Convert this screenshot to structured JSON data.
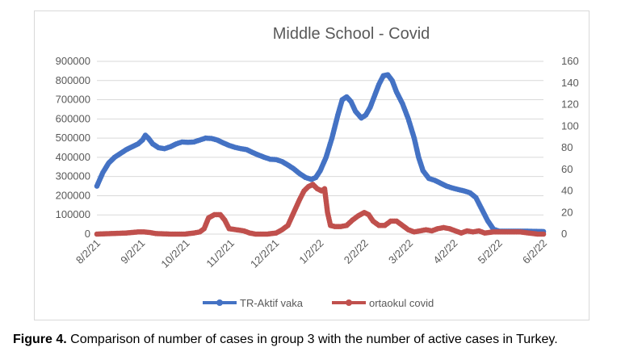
{
  "chart_data": {
    "type": "line",
    "title": "Middle School - Covid",
    "y_left": {
      "ticks": [
        "0",
        "100000",
        "200000",
        "300000",
        "400000",
        "500000",
        "600000",
        "700000",
        "800000",
        "900000"
      ],
      "lim": [
        0,
        900000
      ]
    },
    "y_right": {
      "ticks": [
        "0",
        "20",
        "40",
        "60",
        "80",
        "100",
        "120",
        "140",
        "160"
      ],
      "lim": [
        0,
        160
      ]
    },
    "x_tick_labels": [
      "8/2/21",
      "9/2/21",
      "10/2/21",
      "11/2/21",
      "12/2/21",
      "1/2/22",
      "2/2/22",
      "3/2/22",
      "4/2/22",
      "5/2/22",
      "6/2/22"
    ],
    "x_range_days": [
      0,
      304
    ],
    "legend_position": "bottom",
    "series": [
      {
        "name": "TR-Aktif vaka",
        "axis": "left",
        "color": "#4472c4",
        "points": [
          [
            0,
            250000
          ],
          [
            4,
            320000
          ],
          [
            8,
            370000
          ],
          [
            12,
            400000
          ],
          [
            16,
            420000
          ],
          [
            20,
            440000
          ],
          [
            24,
            455000
          ],
          [
            28,
            470000
          ],
          [
            31,
            490000
          ],
          [
            33,
            515000
          ],
          [
            35,
            500000
          ],
          [
            38,
            470000
          ],
          [
            42,
            450000
          ],
          [
            46,
            445000
          ],
          [
            50,
            455000
          ],
          [
            54,
            470000
          ],
          [
            58,
            480000
          ],
          [
            62,
            478000
          ],
          [
            66,
            480000
          ],
          [
            70,
            490000
          ],
          [
            74,
            500000
          ],
          [
            78,
            498000
          ],
          [
            82,
            490000
          ],
          [
            86,
            475000
          ],
          [
            90,
            462000
          ],
          [
            94,
            452000
          ],
          [
            98,
            445000
          ],
          [
            102,
            440000
          ],
          [
            106,
            425000
          ],
          [
            110,
            412000
          ],
          [
            114,
            400000
          ],
          [
            118,
            390000
          ],
          [
            122,
            388000
          ],
          [
            126,
            378000
          ],
          [
            130,
            360000
          ],
          [
            134,
            340000
          ],
          [
            138,
            315000
          ],
          [
            142,
            295000
          ],
          [
            146,
            285000
          ],
          [
            149,
            295000
          ],
          [
            152,
            330000
          ],
          [
            156,
            400000
          ],
          [
            160,
            500000
          ],
          [
            164,
            620000
          ],
          [
            167,
            700000
          ],
          [
            170,
            715000
          ],
          [
            173,
            690000
          ],
          [
            176,
            640000
          ],
          [
            180,
            605000
          ],
          [
            183,
            620000
          ],
          [
            186,
            660000
          ],
          [
            189,
            720000
          ],
          [
            192,
            780000
          ],
          [
            195,
            825000
          ],
          [
            198,
            830000
          ],
          [
            201,
            800000
          ],
          [
            204,
            740000
          ],
          [
            208,
            680000
          ],
          [
            212,
            600000
          ],
          [
            216,
            500000
          ],
          [
            219,
            400000
          ],
          [
            222,
            330000
          ],
          [
            226,
            290000
          ],
          [
            230,
            280000
          ],
          [
            234,
            265000
          ],
          [
            238,
            250000
          ],
          [
            242,
            240000
          ],
          [
            246,
            232000
          ],
          [
            250,
            225000
          ],
          [
            254,
            215000
          ],
          [
            258,
            190000
          ],
          [
            262,
            130000
          ],
          [
            266,
            70000
          ],
          [
            270,
            25000
          ],
          [
            274,
            15000
          ],
          [
            280,
            15000
          ],
          [
            286,
            15000
          ],
          [
            292,
            15000
          ],
          [
            298,
            14000
          ],
          [
            304,
            13000
          ]
        ]
      },
      {
        "name": "ortaokul covid",
        "axis": "right",
        "color": "#c0504d",
        "points": [
          [
            0,
            0
          ],
          [
            10,
            0.5
          ],
          [
            20,
            1
          ],
          [
            28,
            2
          ],
          [
            32,
            2
          ],
          [
            36,
            1.5
          ],
          [
            40,
            0.5
          ],
          [
            50,
            0
          ],
          [
            60,
            0
          ],
          [
            66,
            1
          ],
          [
            70,
            2
          ],
          [
            73,
            5
          ],
          [
            76,
            15
          ],
          [
            80,
            18
          ],
          [
            84,
            18
          ],
          [
            87,
            13
          ],
          [
            90,
            5
          ],
          [
            95,
            4
          ],
          [
            100,
            3
          ],
          [
            104,
            1
          ],
          [
            108,
            0
          ],
          [
            116,
            0
          ],
          [
            122,
            1
          ],
          [
            126,
            4
          ],
          [
            130,
            8
          ],
          [
            134,
            20
          ],
          [
            138,
            32
          ],
          [
            141,
            40
          ],
          [
            144,
            44
          ],
          [
            147,
            46
          ],
          [
            150,
            42
          ],
          [
            153,
            40
          ],
          [
            155,
            42
          ],
          [
            157,
            20
          ],
          [
            159,
            8
          ],
          [
            162,
            7
          ],
          [
            166,
            7
          ],
          [
            170,
            8
          ],
          [
            174,
            13
          ],
          [
            178,
            17
          ],
          [
            182,
            20
          ],
          [
            185,
            18
          ],
          [
            188,
            12
          ],
          [
            192,
            8
          ],
          [
            196,
            8
          ],
          [
            200,
            12
          ],
          [
            204,
            12
          ],
          [
            208,
            8
          ],
          [
            212,
            4
          ],
          [
            216,
            2
          ],
          [
            220,
            3
          ],
          [
            224,
            4
          ],
          [
            228,
            3
          ],
          [
            232,
            5
          ],
          [
            236,
            6
          ],
          [
            240,
            5
          ],
          [
            244,
            3
          ],
          [
            248,
            1
          ],
          [
            252,
            3
          ],
          [
            256,
            2
          ],
          [
            260,
            3
          ],
          [
            264,
            1
          ],
          [
            270,
            2
          ],
          [
            276,
            2
          ],
          [
            282,
            2
          ],
          [
            288,
            2
          ],
          [
            294,
            1
          ],
          [
            300,
            0
          ],
          [
            304,
            0
          ]
        ]
      }
    ]
  },
  "caption": {
    "label": "Figure 4.",
    "text": " Comparison of number of cases in group 3 with the number of active cases in Turkey."
  }
}
